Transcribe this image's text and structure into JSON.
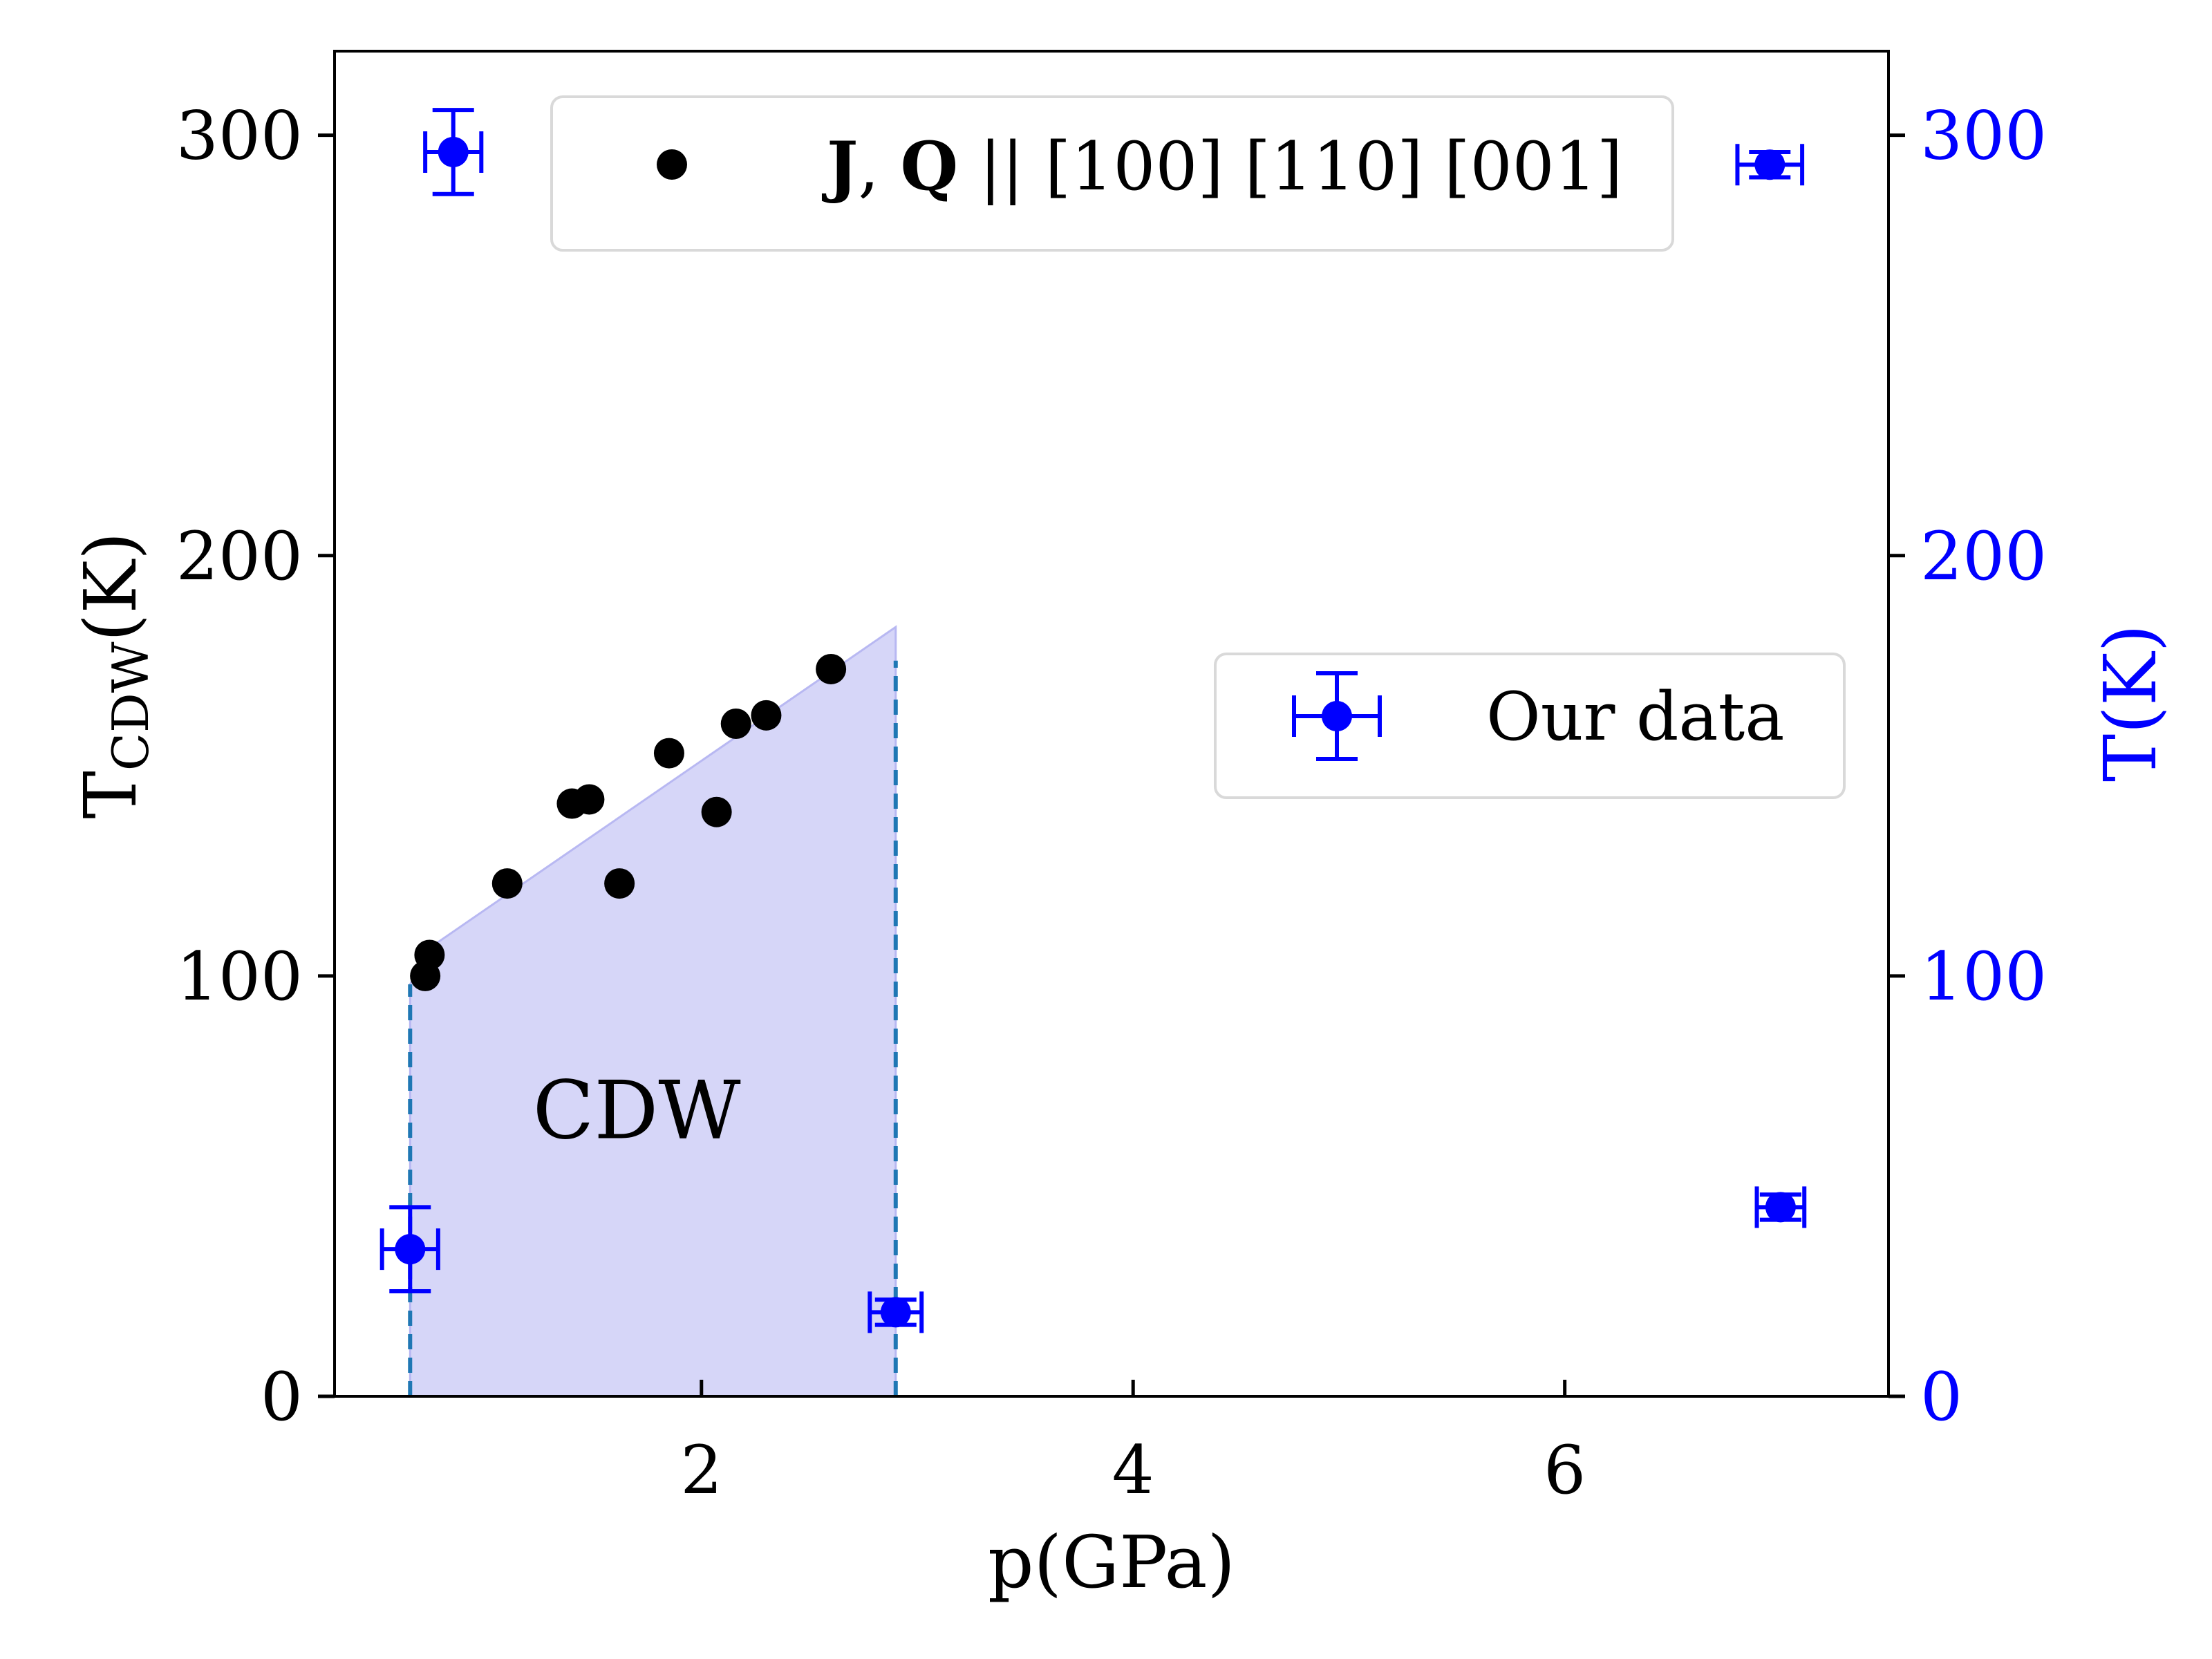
{
  "chart_data": {
    "type": "scatter",
    "xlabel": "p(GPa)",
    "ylabel_left": {
      "main": "T",
      "sub": "CDW",
      "tail": "(K)"
    },
    "ylabel_right": "T(K)",
    "xlim": [
      0.3,
      7.5
    ],
    "ylim": [
      0,
      320
    ],
    "x_ticks": [
      2,
      4,
      6
    ],
    "y_ticks": [
      0,
      100,
      200,
      300
    ],
    "colors": {
      "black_series": "#000000",
      "blue_series": "#0000ff",
      "shade": "#d6d6f8",
      "shade_edge": "#b8b8f2",
      "dashed": "#1f77b4",
      "right_axis": "#0000ff"
    },
    "annotation": {
      "text": "CDW",
      "x": 1.7,
      "y": 68
    },
    "legend_top": {
      "position": "top-center",
      "bold": "J",
      "sep": ", ",
      "bold2": "Q",
      "rest": " || [100] [110] [001]"
    },
    "legend_mid": {
      "position": "center-right",
      "label": "Our data"
    },
    "series": [
      {
        "name": "J, Q || [100] [110] [001]",
        "marker": "circle",
        "points": [
          {
            "x": 0.72,
            "y": 100
          },
          {
            "x": 0.74,
            "y": 105
          },
          {
            "x": 1.1,
            "y": 122
          },
          {
            "x": 1.4,
            "y": 141
          },
          {
            "x": 1.48,
            "y": 142
          },
          {
            "x": 1.62,
            "y": 122
          },
          {
            "x": 1.85,
            "y": 153
          },
          {
            "x": 2.07,
            "y": 139
          },
          {
            "x": 2.16,
            "y": 160
          },
          {
            "x": 2.3,
            "y": 162
          },
          {
            "x": 2.6,
            "y": 173
          }
        ]
      },
      {
        "name": "Our data",
        "marker": "circle-errorbar",
        "points": [
          {
            "x": 0.65,
            "y": 35,
            "xerr": 0.13,
            "yerr": 10
          },
          {
            "x": 0.85,
            "y": 296,
            "xerr": 0.13,
            "yerr": 10
          },
          {
            "x": 2.9,
            "y": 20,
            "xerr": 0.12,
            "yerr": 3
          },
          {
            "x": 6.95,
            "y": 293,
            "xerr": 0.15,
            "yerr": 3
          },
          {
            "x": 7.0,
            "y": 45,
            "xerr": 0.11,
            "yerr": 3
          }
        ]
      }
    ],
    "shaded_region": {
      "name": "CDW",
      "polygon": [
        {
          "x": 0.65,
          "y": 0
        },
        {
          "x": 0.65,
          "y": 98
        },
        {
          "x": 0.75,
          "y": 107
        },
        {
          "x": 2.9,
          "y": 183
        },
        {
          "x": 2.9,
          "y": 0
        }
      ],
      "dashed_lines": [
        {
          "x": 0.65,
          "y_top": 98
        },
        {
          "x": 2.9,
          "y_top": 175
        }
      ]
    }
  }
}
